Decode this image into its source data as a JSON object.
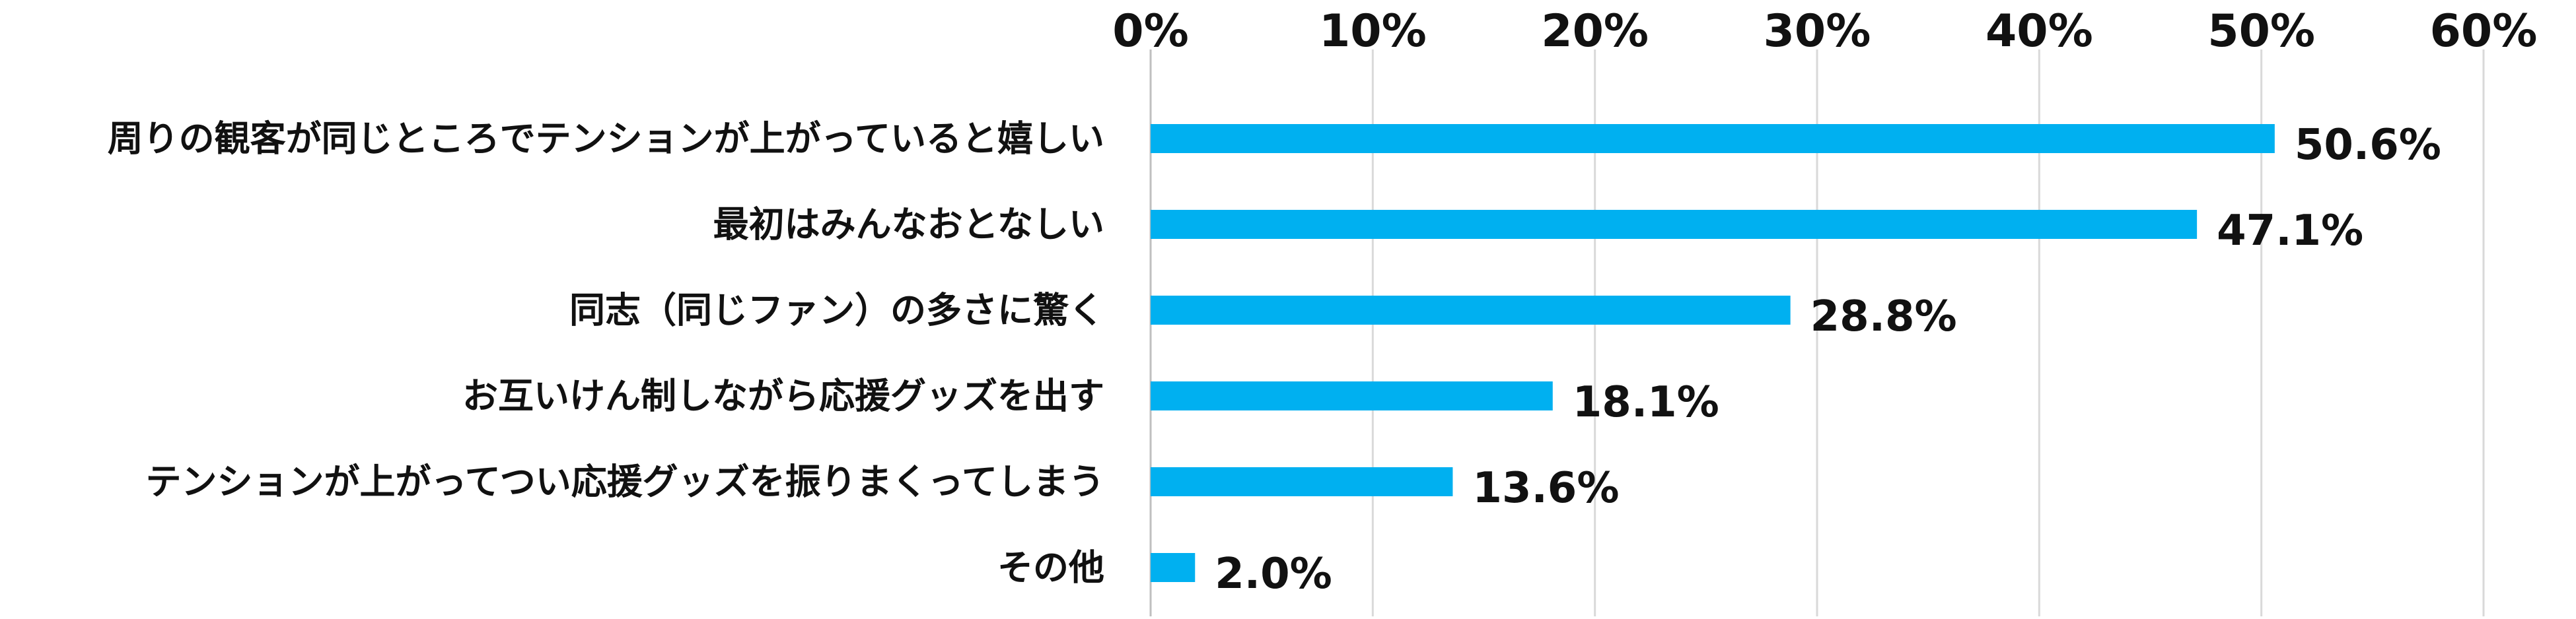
{
  "chart_data": {
    "type": "bar",
    "orientation": "horizontal",
    "categories": [
      "周りの観客が同じところでテンションが上がっていると嬉しい",
      "最初はみんなおとなしい",
      "同志（同じファン）の多さに驚く",
      "お互いけん制しながら応援グッズを出す",
      "テンションが上がってつい応援グッズを振りまくってしまう",
      "その他"
    ],
    "values": [
      50.6,
      47.1,
      28.8,
      18.1,
      13.6,
      2.0
    ],
    "data_labels": [
      "50.6%",
      "47.1%",
      "28.8%",
      "18.1%",
      "13.6%",
      "2.0%"
    ],
    "xlim": [
      0,
      60
    ],
    "x_ticks": [
      0,
      10,
      20,
      30,
      40,
      50,
      60
    ],
    "x_tick_labels": [
      "0%",
      "10%",
      "20%",
      "30%",
      "40%",
      "50%",
      "60%"
    ],
    "x_axis_position": "top",
    "grid": true,
    "bar_color": "#00B0F0",
    "title": "",
    "xlabel": "",
    "ylabel": ""
  }
}
